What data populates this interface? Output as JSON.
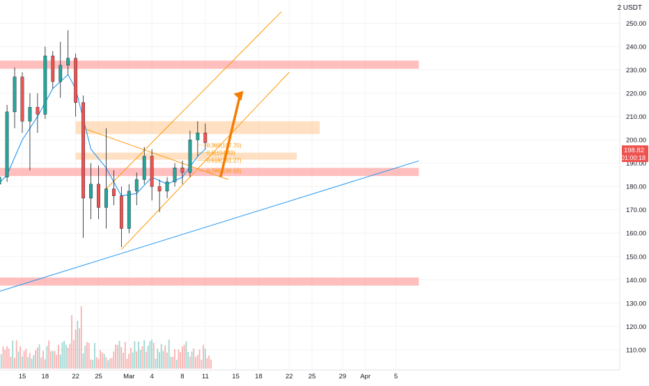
{
  "header": {
    "currency": "2 USDT"
  },
  "price_tag": {
    "price": "198.82",
    "countdown": "01:00:18",
    "color": "#ef5350"
  },
  "colors": {
    "up": "#26a69a",
    "down": "#ef5350",
    "ema": "#2196f3",
    "orange": "#ff9800",
    "arrow": "#f57c00",
    "zone_red": "#ff8a8a",
    "zone_orange": "#ffcc99"
  },
  "y_axis": {
    "min": 104,
    "max": 257,
    "ticks": [
      110,
      120,
      130,
      140,
      150,
      160,
      170,
      180,
      190,
      200,
      210,
      220,
      230,
      240,
      250
    ]
  },
  "x_axis": {
    "labels": [
      {
        "label": "15",
        "date": "2021-02-15"
      },
      {
        "label": "18",
        "date": "2021-02-18"
      },
      {
        "label": "22",
        "date": "2021-02-22"
      },
      {
        "label": "25",
        "date": "2021-02-25"
      },
      {
        "label": "Mar",
        "date": "2021-03-01"
      },
      {
        "label": "4",
        "date": "2021-03-04"
      },
      {
        "label": "8",
        "date": "2021-03-08"
      },
      {
        "label": "11",
        "date": "2021-03-11"
      },
      {
        "label": "15",
        "date": "2021-03-15"
      },
      {
        "label": "18",
        "date": "2021-03-18"
      },
      {
        "label": "22",
        "date": "2021-03-22"
      },
      {
        "label": "25",
        "date": "2021-03-25"
      },
      {
        "label": "29",
        "date": "2021-03-29"
      },
      {
        "label": "Apr",
        "date": "2021-04-01"
      },
      {
        "label": "5",
        "date": "2021-04-05"
      }
    ]
  },
  "zones": [
    {
      "kind": "red",
      "low": 230.5,
      "high": 234.0,
      "from": "2021-02-11",
      "to": "2021-04-08"
    },
    {
      "kind": "red",
      "low": 184.5,
      "high": 188.0,
      "from": "2021-02-11",
      "to": "2021-04-08"
    },
    {
      "kind": "red",
      "low": 137.5,
      "high": 141.0,
      "from": "2021-02-11",
      "to": "2021-04-08"
    },
    {
      "kind": "orange",
      "low": 202.5,
      "high": 208.0,
      "from": "2021-02-22",
      "to": "2021-03-26"
    },
    {
      "kind": "orange",
      "low": 191.5,
      "high": 194.5,
      "from": "2021-02-22",
      "to": "2021-03-23"
    }
  ],
  "fib_levels": [
    {
      "label": "0.382(197.70)",
      "value": 197.7
    },
    {
      "label": "0.5(194.49)",
      "value": 194.49
    },
    {
      "label": "0.618(191.27)",
      "value": 191.27
    },
    {
      "label": "0.786(186.69)",
      "value": 186.69
    }
  ],
  "trend_lines": [
    {
      "name": "upper-channel",
      "from": [
        "2021-02-26",
        179
      ],
      "to": [
        "2021-03-21",
        255
      ]
    },
    {
      "name": "lower-channel",
      "from": [
        "2021-02-28",
        153
      ],
      "to": [
        "2021-03-22",
        229
      ]
    },
    {
      "name": "descending",
      "from": [
        "2021-02-23",
        205
      ],
      "to": [
        "2021-03-14",
        183
      ]
    },
    {
      "name": "support",
      "from": [
        "2021-02-10",
        133
      ],
      "to": [
        "2021-04-08",
        191
      ]
    }
  ],
  "arrow": {
    "from": [
      "2021-03-13",
      184
    ],
    "to": [
      "2021-03-16",
      221
    ]
  },
  "chart_data": {
    "type": "candlestick",
    "title": "",
    "xlabel": "",
    "ylabel": "",
    "ylim": [
      104,
      257
    ],
    "candles": [
      {
        "date": "2021-02-12",
        "o": 181,
        "h": 186,
        "l": 178,
        "c": 184
      },
      {
        "date": "2021-02-13",
        "o": 184,
        "h": 215,
        "l": 182,
        "c": 212
      },
      {
        "date": "2021-02-14",
        "o": 212,
        "h": 231,
        "l": 205,
        "c": 227
      },
      {
        "date": "2021-02-15",
        "o": 227,
        "h": 229,
        "l": 203,
        "c": 208
      },
      {
        "date": "2021-02-16",
        "o": 208,
        "h": 220,
        "l": 187,
        "c": 214
      },
      {
        "date": "2021-02-17",
        "o": 214,
        "h": 220,
        "l": 203,
        "c": 211
      },
      {
        "date": "2021-02-18",
        "o": 211,
        "h": 240,
        "l": 209,
        "c": 236
      },
      {
        "date": "2021-02-19",
        "o": 236,
        "h": 238,
        "l": 222,
        "c": 225
      },
      {
        "date": "2021-02-20",
        "o": 225,
        "h": 242,
        "l": 218,
        "c": 232
      },
      {
        "date": "2021-02-21",
        "o": 232,
        "h": 247,
        "l": 228,
        "c": 235
      },
      {
        "date": "2021-02-22",
        "o": 235,
        "h": 237,
        "l": 210,
        "c": 216
      },
      {
        "date": "2021-02-23",
        "o": 216,
        "h": 219,
        "l": 158,
        "c": 175
      },
      {
        "date": "2021-02-24",
        "o": 175,
        "h": 190,
        "l": 166,
        "c": 181
      },
      {
        "date": "2021-02-25",
        "o": 181,
        "h": 189,
        "l": 166,
        "c": 171
      },
      {
        "date": "2021-02-26",
        "o": 171,
        "h": 205,
        "l": 162,
        "c": 179
      },
      {
        "date": "2021-02-27",
        "o": 179,
        "h": 187,
        "l": 172,
        "c": 176
      },
      {
        "date": "2021-02-28",
        "o": 176,
        "h": 180,
        "l": 154,
        "c": 162
      },
      {
        "date": "2021-03-01",
        "o": 162,
        "h": 181,
        "l": 160,
        "c": 178
      },
      {
        "date": "2021-03-02",
        "o": 178,
        "h": 186,
        "l": 172,
        "c": 183
      },
      {
        "date": "2021-03-03",
        "o": 183,
        "h": 197,
        "l": 181,
        "c": 193
      },
      {
        "date": "2021-03-04",
        "o": 193,
        "h": 196,
        "l": 174,
        "c": 180
      },
      {
        "date": "2021-03-05",
        "o": 180,
        "h": 183,
        "l": 169,
        "c": 178
      },
      {
        "date": "2021-03-06",
        "o": 178,
        "h": 184,
        "l": 175,
        "c": 182
      },
      {
        "date": "2021-03-07",
        "o": 182,
        "h": 190,
        "l": 180,
        "c": 188
      },
      {
        "date": "2021-03-08",
        "o": 188,
        "h": 191,
        "l": 181,
        "c": 186
      },
      {
        "date": "2021-03-09",
        "o": 186,
        "h": 204,
        "l": 184,
        "c": 200
      },
      {
        "date": "2021-03-10",
        "o": 200,
        "h": 208,
        "l": 193,
        "c": 203
      },
      {
        "date": "2021-03-11",
        "o": 203,
        "h": 207,
        "l": 196,
        "c": 198.82
      }
    ],
    "ema": [
      {
        "date": "2021-02-11",
        "value": 178
      },
      {
        "date": "2021-02-13",
        "value": 185
      },
      {
        "date": "2021-02-15",
        "value": 200
      },
      {
        "date": "2021-02-17",
        "value": 210
      },
      {
        "date": "2021-02-19",
        "value": 222
      },
      {
        "date": "2021-02-21",
        "value": 228
      },
      {
        "date": "2021-02-22",
        "value": 222
      },
      {
        "date": "2021-02-24",
        "value": 196
      },
      {
        "date": "2021-02-26",
        "value": 188
      },
      {
        "date": "2021-02-28",
        "value": 176
      },
      {
        "date": "2021-03-02",
        "value": 177
      },
      {
        "date": "2021-03-04",
        "value": 184
      },
      {
        "date": "2021-03-06",
        "value": 181
      },
      {
        "date": "2021-03-08",
        "value": 184
      },
      {
        "date": "2021-03-10",
        "value": 193
      },
      {
        "date": "2021-03-11",
        "value": 196
      }
    ],
    "volume_bars_shown": "per candle, scaled relative"
  }
}
